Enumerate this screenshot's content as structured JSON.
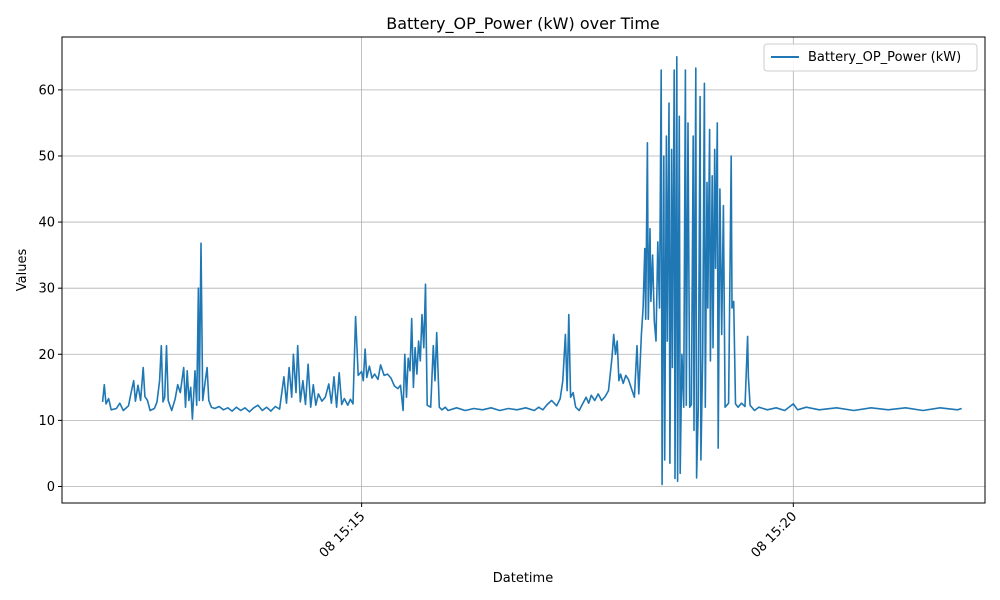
{
  "chart_data": {
    "type": "line",
    "title": "Battery_OP_Power (kW) over Time",
    "xlabel": "Datetime",
    "ylabel": "Values",
    "x_ticks": [
      {
        "t": 15.0,
        "label": "08 15:15"
      },
      {
        "t": 20.0,
        "label": "08 15:20"
      }
    ],
    "xlim": [
      11.53,
      22.22
    ],
    "y_ticks": [
      0,
      10,
      20,
      30,
      40,
      50,
      60
    ],
    "ylim": [
      -2.5,
      68
    ],
    "grid": true,
    "legend": {
      "placement": "top-right",
      "entries": [
        "Battery_OP_Power (kW)"
      ]
    },
    "series": [
      {
        "name": "Battery_OP_Power (kW)",
        "color": "#1f77b4",
        "x_unit": "minutes past 15:00 on day 08",
        "points": [
          [
            12.0,
            12.8
          ],
          [
            12.02,
            15.4
          ],
          [
            12.04,
            12.5
          ],
          [
            12.07,
            13.3
          ],
          [
            12.1,
            11.6
          ],
          [
            12.16,
            11.8
          ],
          [
            12.2,
            12.6
          ],
          [
            12.24,
            11.5
          ],
          [
            12.3,
            12.2
          ],
          [
            12.33,
            14.2
          ],
          [
            12.36,
            16.0
          ],
          [
            12.38,
            12.9
          ],
          [
            12.41,
            15.3
          ],
          [
            12.44,
            13.0
          ],
          [
            12.47,
            18.0
          ],
          [
            12.49,
            13.6
          ],
          [
            12.52,
            13.0
          ],
          [
            12.55,
            11.5
          ],
          [
            12.6,
            11.8
          ],
          [
            12.63,
            12.8
          ],
          [
            12.66,
            16.0
          ],
          [
            12.68,
            21.3
          ],
          [
            12.7,
            12.8
          ],
          [
            12.72,
            13.5
          ],
          [
            12.74,
            21.3
          ],
          [
            12.76,
            13.0
          ],
          [
            12.8,
            11.5
          ],
          [
            12.84,
            13.2
          ],
          [
            12.87,
            15.4
          ],
          [
            12.9,
            14.2
          ],
          [
            12.94,
            18.0
          ],
          [
            12.96,
            12.0
          ],
          [
            12.98,
            17.5
          ],
          [
            13.0,
            13.0
          ],
          [
            13.02,
            15.0
          ],
          [
            13.04,
            10.2
          ],
          [
            13.07,
            17.5
          ],
          [
            13.09,
            12.3
          ],
          [
            13.11,
            30.0
          ],
          [
            13.12,
            13.0
          ],
          [
            13.14,
            36.8
          ],
          [
            13.16,
            13.0
          ],
          [
            13.19,
            16.0
          ],
          [
            13.21,
            18.0
          ],
          [
            13.23,
            13.0
          ],
          [
            13.26,
            12.0
          ],
          [
            13.3,
            11.8
          ],
          [
            13.35,
            12.1
          ],
          [
            13.4,
            11.6
          ],
          [
            13.45,
            11.9
          ],
          [
            13.5,
            11.4
          ],
          [
            13.55,
            12.0
          ],
          [
            13.6,
            11.5
          ],
          [
            13.65,
            11.9
          ],
          [
            13.7,
            11.3
          ],
          [
            13.75,
            11.9
          ],
          [
            13.8,
            12.3
          ],
          [
            13.85,
            11.5
          ],
          [
            13.9,
            12.0
          ],
          [
            13.95,
            11.4
          ],
          [
            14.0,
            12.1
          ],
          [
            14.05,
            11.7
          ],
          [
            14.1,
            16.6
          ],
          [
            14.13,
            12.6
          ],
          [
            14.16,
            18.0
          ],
          [
            14.19,
            13.5
          ],
          [
            14.21,
            20.0
          ],
          [
            14.24,
            14.2
          ],
          [
            14.26,
            21.3
          ],
          [
            14.29,
            12.8
          ],
          [
            14.32,
            16.0
          ],
          [
            14.35,
            12.4
          ],
          [
            14.38,
            18.5
          ],
          [
            14.41,
            12.0
          ],
          [
            14.44,
            15.4
          ],
          [
            14.47,
            12.3
          ],
          [
            14.5,
            14.0
          ],
          [
            14.54,
            12.9
          ],
          [
            14.58,
            13.5
          ],
          [
            14.62,
            15.5
          ],
          [
            14.65,
            12.6
          ],
          [
            14.68,
            16.6
          ],
          [
            14.71,
            12.0
          ],
          [
            14.74,
            17.2
          ],
          [
            14.77,
            12.4
          ],
          [
            14.8,
            13.3
          ],
          [
            14.84,
            12.3
          ],
          [
            14.87,
            13.2
          ],
          [
            14.9,
            12.5
          ],
          [
            14.93,
            25.7
          ],
          [
            14.96,
            16.8
          ],
          [
            15.0,
            17.4
          ],
          [
            15.02,
            16.0
          ],
          [
            15.04,
            20.8
          ],
          [
            15.06,
            16.5
          ],
          [
            15.09,
            18.2
          ],
          [
            15.12,
            16.4
          ],
          [
            15.15,
            17.0
          ],
          [
            15.19,
            16.2
          ],
          [
            15.22,
            18.4
          ],
          [
            15.26,
            16.8
          ],
          [
            15.3,
            17.0
          ],
          [
            15.34,
            16.4
          ],
          [
            15.38,
            15.2
          ],
          [
            15.42,
            14.8
          ],
          [
            15.45,
            15.3
          ],
          [
            15.48,
            11.5
          ],
          [
            15.5,
            20.0
          ],
          [
            15.52,
            13.5
          ],
          [
            15.54,
            19.4
          ],
          [
            15.56,
            17.5
          ],
          [
            15.58,
            25.4
          ],
          [
            15.6,
            15.0
          ],
          [
            15.62,
            21.0
          ],
          [
            15.64,
            17.0
          ],
          [
            15.66,
            22.0
          ],
          [
            15.68,
            19.0
          ],
          [
            15.7,
            26.0
          ],
          [
            15.72,
            21.0
          ],
          [
            15.74,
            30.6
          ],
          [
            15.76,
            12.3
          ],
          [
            15.8,
            12.0
          ],
          [
            15.83,
            21.3
          ],
          [
            15.85,
            16.0
          ],
          [
            15.87,
            23.3
          ],
          [
            15.9,
            12.0
          ],
          [
            15.93,
            11.6
          ],
          [
            15.97,
            12.0
          ],
          [
            16.0,
            11.5
          ],
          [
            16.1,
            11.9
          ],
          [
            16.2,
            11.5
          ],
          [
            16.3,
            11.8
          ],
          [
            16.4,
            11.6
          ],
          [
            16.5,
            11.9
          ],
          [
            16.6,
            11.5
          ],
          [
            16.7,
            11.8
          ],
          [
            16.8,
            11.6
          ],
          [
            16.9,
            11.9
          ],
          [
            17.0,
            11.5
          ],
          [
            17.05,
            12.0
          ],
          [
            17.1,
            11.6
          ],
          [
            17.15,
            12.4
          ],
          [
            17.2,
            13.0
          ],
          [
            17.26,
            12.2
          ],
          [
            17.3,
            13.3
          ],
          [
            17.33,
            16.0
          ],
          [
            17.36,
            23.0
          ],
          [
            17.38,
            14.5
          ],
          [
            17.4,
            26.0
          ],
          [
            17.42,
            13.5
          ],
          [
            17.45,
            14.2
          ],
          [
            17.48,
            12.0
          ],
          [
            17.52,
            11.5
          ],
          [
            17.56,
            12.5
          ],
          [
            17.6,
            13.5
          ],
          [
            17.63,
            12.6
          ],
          [
            17.66,
            13.8
          ],
          [
            17.7,
            13.0
          ],
          [
            17.74,
            14.0
          ],
          [
            17.78,
            13.0
          ],
          [
            17.82,
            13.6
          ],
          [
            17.86,
            14.5
          ],
          [
            17.9,
            19.5
          ],
          [
            17.92,
            23.0
          ],
          [
            17.94,
            20.0
          ],
          [
            17.96,
            22.0
          ],
          [
            17.98,
            16.0
          ],
          [
            18.0,
            17.0
          ],
          [
            18.03,
            15.6
          ],
          [
            18.06,
            16.8
          ],
          [
            18.09,
            16.2
          ],
          [
            18.12,
            15.0
          ],
          [
            18.16,
            13.5
          ],
          [
            18.19,
            21.3
          ],
          [
            18.21,
            14.0
          ],
          [
            18.24,
            23.0
          ],
          [
            18.26,
            27.0
          ],
          [
            18.28,
            36.0
          ],
          [
            18.29,
            25.3
          ],
          [
            18.31,
            52.0
          ],
          [
            18.32,
            25.3
          ],
          [
            18.34,
            39.0
          ],
          [
            18.35,
            28.0
          ],
          [
            18.37,
            35.0
          ],
          [
            18.39,
            25.0
          ],
          [
            18.41,
            22.0
          ],
          [
            18.43,
            37.0
          ],
          [
            18.45,
            27.0
          ],
          [
            18.47,
            63.0
          ],
          [
            18.48,
            0.3
          ],
          [
            18.5,
            50.0
          ],
          [
            18.51,
            4.0
          ],
          [
            18.53,
            53.0
          ],
          [
            18.54,
            22.0
          ],
          [
            18.56,
            58.0
          ],
          [
            18.57,
            3.5
          ],
          [
            18.59,
            51.0
          ],
          [
            18.6,
            18.0
          ],
          [
            18.62,
            63.0
          ],
          [
            18.63,
            1.2
          ],
          [
            18.65,
            65.0
          ],
          [
            18.66,
            0.8
          ],
          [
            18.68,
            56.0
          ],
          [
            18.69,
            2.0
          ],
          [
            18.71,
            20.0
          ],
          [
            18.73,
            12.0
          ],
          [
            18.75,
            63.0
          ],
          [
            18.76,
            12.3
          ],
          [
            18.78,
            55.0
          ],
          [
            18.8,
            12.0
          ],
          [
            18.82,
            12.4
          ],
          [
            18.84,
            53.0
          ],
          [
            18.85,
            8.5
          ],
          [
            18.87,
            63.3
          ],
          [
            18.88,
            1.3
          ],
          [
            18.9,
            12.2
          ],
          [
            18.92,
            59.0
          ],
          [
            18.93,
            4.0
          ],
          [
            18.95,
            20.0
          ],
          [
            18.97,
            61.0
          ],
          [
            18.98,
            12.0
          ],
          [
            19.0,
            46.0
          ],
          [
            19.01,
            27.0
          ],
          [
            19.03,
            54.0
          ],
          [
            19.04,
            19.0
          ],
          [
            19.06,
            47.0
          ],
          [
            19.07,
            21.0
          ],
          [
            19.09,
            51.0
          ],
          [
            19.1,
            33.0
          ],
          [
            19.12,
            55.0
          ],
          [
            19.13,
            5.8
          ],
          [
            19.15,
            45.0
          ],
          [
            19.17,
            23.0
          ],
          [
            19.19,
            42.5
          ],
          [
            19.21,
            12.0
          ],
          [
            19.25,
            12.6
          ],
          [
            19.28,
            50.0
          ],
          [
            19.29,
            27.0
          ],
          [
            19.31,
            28.0
          ],
          [
            19.33,
            12.5
          ],
          [
            19.36,
            12.0
          ],
          [
            19.4,
            12.6
          ],
          [
            19.44,
            12.1
          ],
          [
            19.47,
            22.7
          ],
          [
            19.48,
            16.5
          ],
          [
            19.5,
            12.3
          ],
          [
            19.55,
            11.5
          ],
          [
            19.6,
            12.0
          ],
          [
            19.7,
            11.6
          ],
          [
            19.8,
            11.9
          ],
          [
            19.9,
            11.5
          ],
          [
            20.0,
            12.5
          ],
          [
            20.05,
            11.6
          ],
          [
            20.15,
            12.0
          ],
          [
            20.3,
            11.6
          ],
          [
            20.5,
            11.9
          ],
          [
            20.7,
            11.5
          ],
          [
            20.9,
            11.9
          ],
          [
            21.1,
            11.6
          ],
          [
            21.3,
            11.9
          ],
          [
            21.5,
            11.5
          ],
          [
            21.7,
            11.9
          ],
          [
            21.9,
            11.6
          ],
          [
            21.95,
            11.8
          ]
        ]
      }
    ]
  }
}
